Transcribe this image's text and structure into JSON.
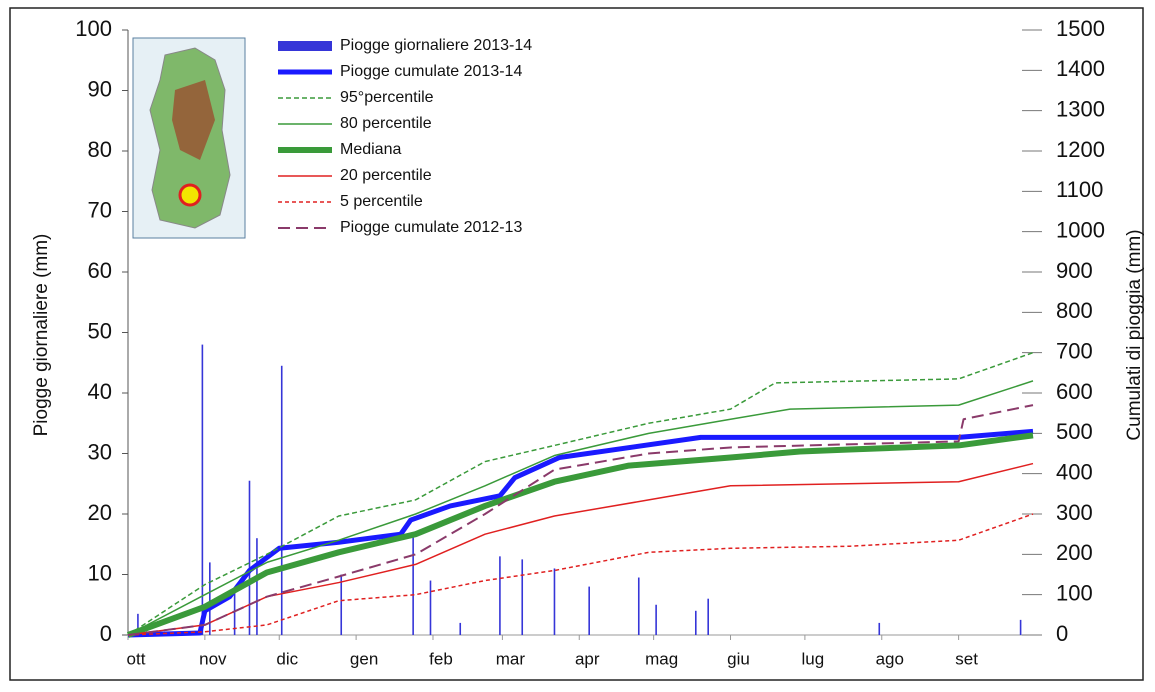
{
  "chart_data": {
    "type": "line",
    "ylabel": "Piogge giornaliere (mm)",
    "y2label": "Cumulati di pioggia (mm)",
    "xlim": [
      0,
      365
    ],
    "xticks": [
      {
        "value": 0,
        "label": "ott"
      },
      {
        "value": 31,
        "label": "nov"
      },
      {
        "value": 61,
        "label": "dic"
      },
      {
        "value": 92,
        "label": "gen"
      },
      {
        "value": 123,
        "label": "feb"
      },
      {
        "value": 151,
        "label": "mar"
      },
      {
        "value": 182,
        "label": "apr"
      },
      {
        "value": 212,
        "label": "mag"
      },
      {
        "value": 243,
        "label": "giu"
      },
      {
        "value": 273,
        "label": "lug"
      },
      {
        "value": 304,
        "label": "ago"
      },
      {
        "value": 335,
        "label": "set"
      }
    ],
    "ylim": [
      0,
      100
    ],
    "yticks": [
      0,
      10,
      20,
      30,
      40,
      50,
      60,
      70,
      80,
      90,
      100
    ],
    "y2lim": [
      0,
      1500
    ],
    "y2ticks": [
      0,
      100,
      200,
      300,
      400,
      500,
      600,
      700,
      800,
      900,
      1000,
      1100,
      1200,
      1300,
      1400,
      1500
    ],
    "series": [
      {
        "name": "Piogge giornaliere 2013-14",
        "type": "bar",
        "color": "#3535d8",
        "x": [
          4,
          30,
          33,
          43,
          49,
          52,
          62,
          86,
          115,
          122,
          134,
          150,
          159,
          172,
          186,
          206,
          213,
          229,
          234,
          303,
          360
        ],
        "values": [
          3.5,
          48,
          12,
          7,
          25.5,
          16,
          44.5,
          10,
          17,
          9,
          2,
          13,
          12.5,
          11,
          8,
          9.5,
          5,
          4,
          6,
          2,
          2.5
        ]
      },
      {
        "name": "Piogge cumulate 2013-14",
        "axis": "y2",
        "color": "#1a1aff",
        "width": 5,
        "dash": "none",
        "x": [
          0,
          29,
          31,
          41,
          49,
          61,
          85,
          110,
          114,
          130,
          150,
          156,
          174,
          231,
          335,
          365
        ],
        "values": [
          0,
          5,
          60,
          95,
          160,
          215,
          230,
          250,
          285,
          320,
          345,
          390,
          440,
          490,
          490,
          505
        ]
      },
      {
        "name": "95°percentile",
        "axis": "y2",
        "color": "#3a9a3a",
        "width": 1.5,
        "dash": "5 3",
        "x": [
          0,
          31,
          56,
          85,
          116,
          144,
          172,
          210,
          243,
          261,
          335,
          365
        ],
        "values": [
          0,
          125,
          200,
          295,
          335,
          430,
          470,
          525,
          560,
          625,
          635,
          700
        ]
      },
      {
        "name": "80 percentile",
        "axis": "y2",
        "color": "#3a9a3a",
        "width": 1.5,
        "dash": "none",
        "x": [
          0,
          31,
          56,
          85,
          116,
          144,
          172,
          210,
          243,
          267,
          335,
          365
        ],
        "values": [
          0,
          100,
          180,
          235,
          300,
          370,
          445,
          500,
          535,
          560,
          570,
          630
        ]
      },
      {
        "name": "Mediana",
        "axis": "y2",
        "color": "#3a9a3a",
        "width": 6,
        "dash": "none",
        "x": [
          0,
          31,
          56,
          85,
          116,
          144,
          172,
          202,
          243,
          271,
          291,
          335,
          365
        ],
        "values": [
          0,
          70,
          155,
          205,
          250,
          320,
          380,
          420,
          440,
          455,
          460,
          470,
          495
        ]
      },
      {
        "name": "20 percentile",
        "axis": "y2",
        "color": "#e02020",
        "width": 1.5,
        "dash": "none",
        "x": [
          0,
          31,
          56,
          85,
          116,
          144,
          172,
          210,
          243,
          335,
          365
        ],
        "values": [
          0,
          25,
          95,
          130,
          175,
          250,
          295,
          335,
          370,
          380,
          425
        ]
      },
      {
        "name": "5 percentile",
        "axis": "y2",
        "color": "#e02020",
        "width": 1.5,
        "dash": "4 3",
        "x": [
          0,
          31,
          56,
          85,
          116,
          144,
          172,
          210,
          243,
          291,
          335,
          365
        ],
        "values": [
          0,
          8,
          25,
          85,
          100,
          135,
          160,
          205,
          215,
          220,
          235,
          300
        ]
      },
      {
        "name": "Piogge cumulate 2012-13",
        "axis": "y2",
        "color": "#8a3a6a",
        "width": 2,
        "dash": "12 6",
        "x": [
          0,
          31,
          56,
          85,
          116,
          144,
          172,
          210,
          243,
          335,
          337,
          365
        ],
        "values": [
          0,
          25,
          95,
          145,
          200,
          300,
          410,
          450,
          465,
          480,
          535,
          570
        ]
      }
    ]
  }
}
